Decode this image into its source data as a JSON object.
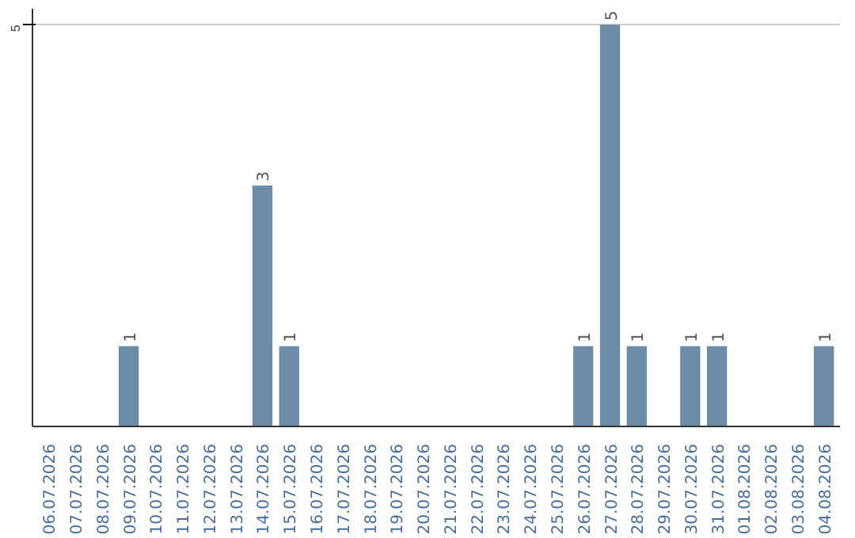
{
  "chart_data": {
    "type": "bar",
    "categories": [
      "06.07.2026",
      "07.07.2026",
      "08.07.2026",
      "09.07.2026",
      "10.07.2026",
      "11.07.2026",
      "12.07.2026",
      "13.07.2026",
      "14.07.2026",
      "15.07.2026",
      "16.07.2026",
      "17.07.2026",
      "18.07.2026",
      "19.07.2026",
      "20.07.2026",
      "21.07.2026",
      "22.07.2026",
      "23.07.2026",
      "24.07.2026",
      "25.07.2026",
      "26.07.2026",
      "27.07.2026",
      "28.07.2026",
      "29.07.2026",
      "30.07.2026",
      "31.07.2026",
      "01.08.2026",
      "02.08.2026",
      "03.08.2026",
      "04.08.2026"
    ],
    "values": [
      0,
      0,
      0,
      1,
      0,
      0,
      0,
      0,
      3,
      1,
      0,
      0,
      0,
      0,
      0,
      0,
      0,
      0,
      0,
      0,
      1,
      5,
      1,
      0,
      1,
      1,
      0,
      0,
      0,
      1
    ],
    "color": "#6d8ca8",
    "value_labels": [
      null,
      null,
      null,
      "1",
      null,
      null,
      null,
      null,
      "3",
      "1",
      null,
      null,
      null,
      null,
      null,
      null,
      null,
      null,
      null,
      null,
      "1",
      "5",
      "1",
      null,
      "1",
      "1",
      null,
      null,
      null,
      "1"
    ],
    "ylim": [
      0,
      5.2
    ],
    "yticks": [
      5
    ],
    "grid": "y"
  }
}
